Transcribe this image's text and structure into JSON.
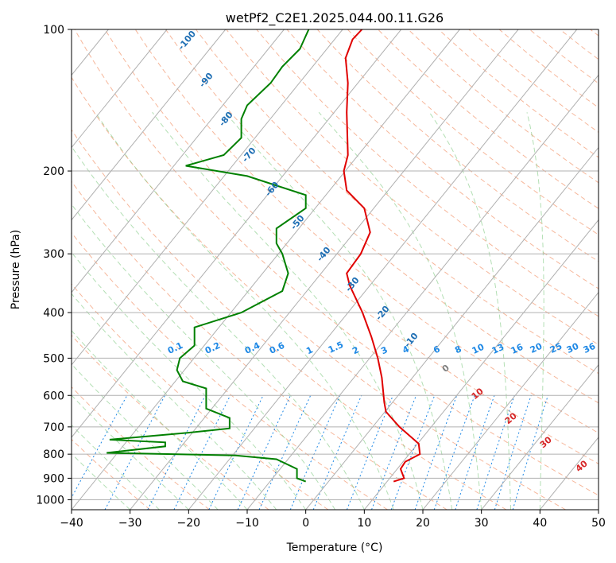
{
  "chart_data": {
    "type": "line",
    "title": "wetPf2_C2E1.2025.044.00.11.G26",
    "xlabel": "Temperature (°C)",
    "ylabel": "Pressure (hPa)",
    "xlim": [
      -40,
      50
    ],
    "ylim": [
      1050,
      100
    ],
    "y_scale": "log",
    "grid": true,
    "x_ticks": [
      "−40",
      "−30",
      "−20",
      "−10",
      "0",
      "10",
      "20",
      "30",
      "40",
      "50"
    ],
    "y_ticks": [
      {
        "p": 100,
        "label": "100"
      },
      {
        "p": 200,
        "label": "200"
      },
      {
        "p": 300,
        "label": "300"
      },
      {
        "p": 400,
        "label": "400"
      },
      {
        "p": 500,
        "label": "500"
      },
      {
        "p": 600,
        "label": "600"
      },
      {
        "p": 700,
        "label": "700"
      },
      {
        "p": 800,
        "label": "800"
      },
      {
        "p": 900,
        "label": "900"
      },
      {
        "p": 1000,
        "label": "1000"
      }
    ],
    "series": [
      {
        "color": "#e00000",
        "points": [
          [
            15,
            915
          ],
          [
            16.8,
            900
          ],
          [
            16.2,
            860
          ],
          [
            17,
            830
          ],
          [
            19.5,
            800
          ],
          [
            19.3,
            760
          ],
          [
            16,
            700
          ],
          [
            13.7,
            650
          ],
          [
            13.4,
            620
          ],
          [
            13.3,
            600
          ],
          [
            13,
            550
          ],
          [
            12.3,
            500
          ],
          [
            11.2,
            450
          ],
          [
            9.7,
            400
          ],
          [
            7.5,
            350
          ],
          [
            7,
            330
          ],
          [
            9.4,
            300
          ],
          [
            11,
            270
          ],
          [
            10,
            240
          ],
          [
            7,
            220
          ],
          [
            6.5,
            200
          ],
          [
            7.2,
            185
          ],
          [
            7,
            150
          ],
          [
            7.2,
            130
          ],
          [
            6.8,
            115
          ],
          [
            8,
            105
          ],
          [
            9.6,
            100
          ]
        ]
      },
      {
        "color": "#008000",
        "points": [
          [
            0,
            915
          ],
          [
            -1.5,
            900
          ],
          [
            -1.5,
            860
          ],
          [
            -5,
            820
          ],
          [
            -12,
            805
          ],
          [
            -34,
            795
          ],
          [
            -24,
            770
          ],
          [
            -24,
            755
          ],
          [
            -33.5,
            745
          ],
          [
            -20,
            720
          ],
          [
            -13,
            705
          ],
          [
            -13,
            670
          ],
          [
            -17,
            640
          ],
          [
            -17,
            620
          ],
          [
            -17,
            580
          ],
          [
            -21,
            560
          ],
          [
            -22,
            530
          ],
          [
            -21.5,
            500
          ],
          [
            -19,
            470
          ],
          [
            -19,
            445
          ],
          [
            -19,
            430
          ],
          [
            -11,
            400
          ],
          [
            -4,
            360
          ],
          [
            -3,
            330
          ],
          [
            -4,
            300
          ],
          [
            -5,
            285
          ],
          [
            -5,
            265
          ],
          [
            0,
            240
          ],
          [
            0,
            225
          ],
          [
            -10,
            205
          ],
          [
            -20.5,
            195
          ],
          [
            -14,
            185
          ],
          [
            -11,
            170
          ],
          [
            -11,
            155
          ],
          [
            -10,
            145
          ],
          [
            -6,
            130
          ],
          [
            -4,
            120
          ],
          [
            -1,
            110
          ],
          [
            0.5,
            100
          ]
        ]
      }
    ],
    "isotherm_labels": {
      "color": "#1f6fb4",
      "labels": [
        "-100",
        "-90",
        "-80",
        "-70",
        "-60",
        "-50",
        "-40",
        "-30",
        "-20",
        "-10"
      ]
    },
    "dry_adiabat_labels": {
      "color": "#d62728",
      "labels": [
        "10",
        "20",
        "30",
        "40"
      ]
    },
    "zero_label": {
      "color": "#7f7f7f",
      "label": "0"
    },
    "mixing_ratio_labels": {
      "color": "#1e88e5",
      "labels": [
        "0.1",
        "0.2",
        "0.4",
        "0.6",
        "1",
        "1.5",
        "2",
        "3",
        "4",
        "6",
        "8",
        "10",
        "13",
        "16",
        "20",
        "25",
        "30",
        "36"
      ]
    }
  }
}
